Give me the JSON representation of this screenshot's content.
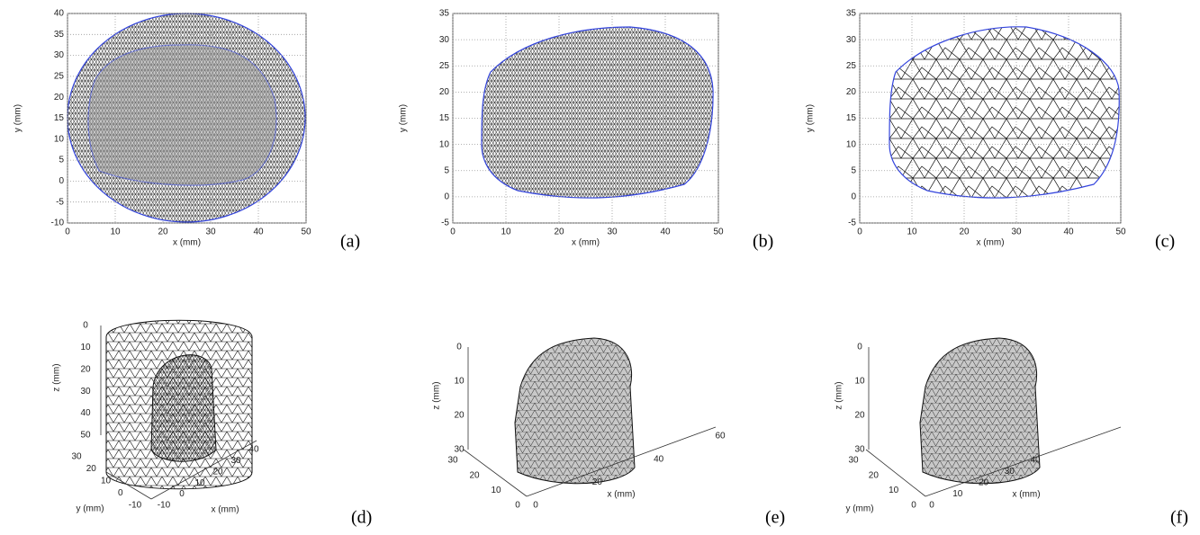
{
  "panels_2d": [
    {
      "label": "(a)",
      "xlabel": "x (mm)",
      "ylabel": "y (mm)",
      "xticks": [
        0,
        10,
        20,
        30,
        40,
        50
      ],
      "yticks": [
        40,
        35,
        30,
        25,
        20,
        15,
        10,
        5,
        0,
        -5,
        -10
      ]
    },
    {
      "label": "(b)",
      "xlabel": "x (mm)",
      "ylabel": "y (mm)",
      "xticks": [
        0,
        10,
        20,
        30,
        40,
        50
      ],
      "yticks": [
        35,
        30,
        25,
        20,
        15,
        10,
        5,
        0,
        -5
      ]
    },
    {
      "label": "(c)",
      "xlabel": "x (mm)",
      "ylabel": "y (mm)",
      "xticks": [
        0,
        10,
        20,
        30,
        40,
        50
      ],
      "yticks": [
        35,
        30,
        25,
        20,
        15,
        10,
        5,
        0,
        -5
      ]
    }
  ],
  "panels_3d": [
    {
      "label": "(d)",
      "xlabel": "x (mm)",
      "ylabel": "y (mm)",
      "zlabel": "z (mm)",
      "xticks": [
        -10,
        0,
        10,
        20,
        30,
        40
      ],
      "yticks": [
        30,
        20,
        10,
        0,
        -10
      ],
      "zticks": [
        50,
        40,
        30,
        20,
        10,
        0
      ]
    },
    {
      "label": "(e)",
      "xlabel": "x (mm)",
      "zlabel": "z (mm)",
      "xticks": [
        0,
        20,
        40,
        60
      ],
      "yticks": [
        30,
        20,
        10,
        0
      ],
      "zticks": [
        30,
        20,
        10,
        0
      ]
    },
    {
      "label": "(f)",
      "xlabel": "x (mm)",
      "ylabel": "y (mm)",
      "zlabel": "z (mm)",
      "xticks": [
        0,
        10,
        20,
        30,
        40
      ],
      "yticks": [
        30,
        20,
        10,
        0
      ],
      "zticks": [
        30,
        20,
        10,
        0
      ]
    }
  ]
}
